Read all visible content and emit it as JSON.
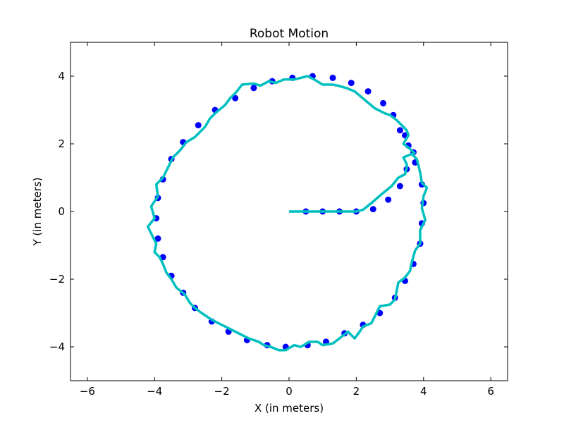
{
  "chart_data": {
    "type": "scatter",
    "title": "Robot Motion",
    "xlabel": "X (in meters)",
    "ylabel": "Y (in meters)",
    "xlim": [
      -6.5,
      6.5
    ],
    "ylim": [
      -5,
      5
    ],
    "xticks": [
      -6,
      -4,
      -2,
      0,
      2,
      4,
      6
    ],
    "yticks": [
      -4,
      -2,
      0,
      2,
      4
    ],
    "xtick_labels": [
      "−6",
      "−4",
      "−2",
      "0",
      "2",
      "4",
      "6"
    ],
    "ytick_labels": [
      "−4",
      "−2",
      "0",
      "2",
      "4"
    ],
    "grid": false,
    "colors": {
      "points": "#0000ff",
      "path": "#00bfbf"
    },
    "series": [
      {
        "kind": "points",
        "x": [
          0.5,
          1.0,
          1.5,
          2.0,
          2.5,
          2.95,
          3.3,
          3.5,
          3.75,
          3.95,
          4.0,
          3.95,
          3.9,
          3.7,
          3.45,
          3.15,
          2.7,
          2.2,
          1.65,
          1.1,
          0.55,
          -0.1,
          -0.65,
          -1.25,
          -1.8,
          -2.3,
          -2.8,
          -3.15,
          -3.5,
          -3.75,
          -3.9,
          -3.95,
          -3.9,
          -3.75,
          -3.5,
          -3.15,
          -2.7,
          -2.2,
          -1.6,
          -1.05,
          -0.5,
          0.1,
          0.7,
          1.3,
          1.85,
          2.35,
          2.8,
          3.1,
          3.3,
          3.45,
          3.55,
          3.7
        ],
        "y": [
          0.0,
          0.0,
          0.0,
          0.0,
          0.07,
          0.35,
          0.75,
          1.25,
          1.45,
          0.8,
          0.25,
          -0.35,
          -0.95,
          -1.55,
          -2.05,
          -2.55,
          -3.0,
          -3.35,
          -3.6,
          -3.85,
          -3.95,
          -4.0,
          -3.95,
          -3.8,
          -3.55,
          -3.25,
          -2.85,
          -2.4,
          -1.9,
          -1.35,
          -0.8,
          -0.2,
          0.4,
          0.95,
          1.55,
          2.05,
          2.55,
          3.0,
          3.35,
          3.65,
          3.85,
          3.95,
          4.0,
          3.95,
          3.8,
          3.55,
          3.2,
          2.85,
          2.4,
          2.25,
          1.95,
          1.75
        ]
      },
      {
        "kind": "line",
        "x": [
          0.0,
          2.0,
          2.2,
          2.45,
          2.8,
          3.05,
          3.25,
          3.45,
          3.5,
          3.5,
          3.4,
          3.65,
          3.8,
          3.9,
          3.95,
          4.1,
          4.0,
          3.95,
          4.05,
          3.9,
          3.9,
          3.75,
          3.65,
          3.6,
          3.45,
          3.25,
          3.15,
          3.0,
          2.7,
          2.55,
          2.45,
          2.2,
          2.1,
          1.95,
          1.85,
          1.75,
          1.5,
          1.3,
          1.0,
          0.85,
          0.6,
          0.35,
          0.15,
          -0.1,
          -0.3,
          -0.55,
          -0.75,
          -0.9,
          -1.2,
          -1.4,
          -1.7,
          -2.0,
          -2.3,
          -2.6,
          -2.8,
          -2.95,
          -3.1,
          -3.35,
          -3.5,
          -3.65,
          -3.75,
          -3.85,
          -4.0,
          -3.95,
          -4.05,
          -4.2,
          -4.0,
          -4.1,
          -3.9,
          -3.95,
          -3.75,
          -3.6,
          -3.45,
          -3.25,
          -3.05,
          -2.8,
          -2.5,
          -2.35,
          -2.2,
          -1.9,
          -1.75,
          -1.55,
          -1.4,
          -1.05,
          -0.85,
          -0.6,
          -0.4,
          -0.15,
          0.15,
          0.35,
          0.55,
          0.75,
          1.0,
          1.3,
          1.45,
          1.7,
          1.95,
          2.25,
          2.55,
          2.85,
          3.0,
          3.2,
          3.35,
          3.5,
          3.55,
          3.4,
          3.6,
          3.75
        ],
        "y": [
          0.0,
          0.0,
          0.05,
          0.25,
          0.55,
          0.75,
          1.0,
          1.1,
          1.3,
          1.4,
          1.6,
          1.7,
          1.55,
          1.15,
          0.85,
          0.7,
          0.45,
          0.1,
          -0.25,
          -0.55,
          -0.95,
          -1.15,
          -1.5,
          -1.75,
          -1.95,
          -2.1,
          -2.6,
          -2.75,
          -2.8,
          -3.1,
          -3.3,
          -3.4,
          -3.55,
          -3.75,
          -3.65,
          -3.55,
          -3.75,
          -3.9,
          -3.95,
          -3.85,
          -3.85,
          -4.0,
          -3.95,
          -4.1,
          -4.1,
          -4.0,
          -3.95,
          -3.85,
          -3.75,
          -3.65,
          -3.5,
          -3.35,
          -3.2,
          -3.0,
          -2.85,
          -2.7,
          -2.45,
          -2.25,
          -2.0,
          -1.8,
          -1.55,
          -1.35,
          -1.2,
          -0.95,
          -0.75,
          -0.45,
          -0.2,
          0.15,
          0.45,
          0.8,
          1.0,
          1.3,
          1.6,
          1.8,
          2.05,
          2.2,
          2.5,
          2.75,
          2.9,
          3.15,
          3.35,
          3.55,
          3.75,
          3.78,
          3.72,
          3.85,
          3.8,
          3.9,
          3.9,
          3.95,
          4.0,
          3.9,
          3.75,
          3.75,
          3.72,
          3.65,
          3.55,
          3.3,
          3.05,
          2.9,
          2.85,
          2.7,
          2.55,
          2.4,
          2.25,
          2.0,
          1.85,
          1.7
        ]
      }
    ]
  }
}
